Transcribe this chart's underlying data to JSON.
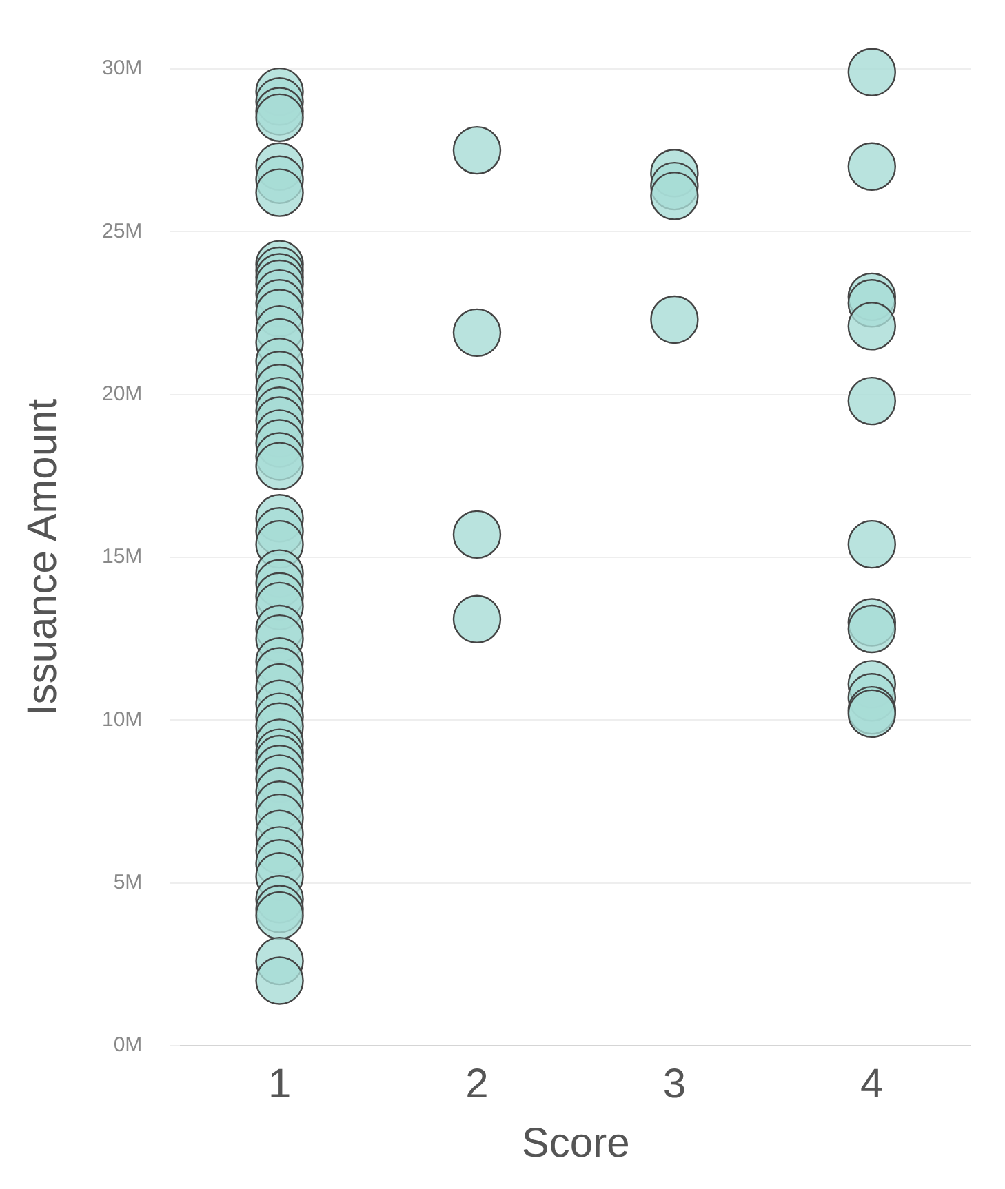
{
  "chart_data": {
    "type": "scatter",
    "xlabel": "Score",
    "ylabel": "Issuance Amount",
    "categories": [
      "1",
      "2",
      "3",
      "4"
    ],
    "ylim": [
      0,
      30
    ],
    "yticks": [
      {
        "value": 0,
        "label": "0M"
      },
      {
        "value": 5,
        "label": "5M"
      },
      {
        "value": 10,
        "label": "10M"
      },
      {
        "value": 15,
        "label": "15M"
      },
      {
        "value": 20,
        "label": "20M"
      },
      {
        "value": 25,
        "label": "25M"
      },
      {
        "value": 30,
        "label": "30M"
      }
    ],
    "grid": "y",
    "marker": "circle",
    "series": [
      {
        "color": "#a8dcd6",
        "x": [
          "1",
          "1",
          "1",
          "1",
          "1",
          "1",
          "1",
          "1",
          "1",
          "1",
          "1",
          "1",
          "1",
          "1",
          "1",
          "1",
          "1",
          "1",
          "1",
          "1",
          "1",
          "1",
          "1",
          "1",
          "1",
          "1",
          "1",
          "1",
          "1",
          "1",
          "1",
          "1",
          "1",
          "1",
          "1",
          "1",
          "1",
          "1",
          "1",
          "1",
          "1",
          "1",
          "1",
          "1",
          "1",
          "1",
          "1",
          "1",
          "1",
          "1",
          "1",
          "1",
          "1",
          "1",
          "1",
          "1",
          "1",
          "1",
          "2",
          "2",
          "2",
          "2",
          "3",
          "3",
          "3",
          "3",
          "4",
          "4",
          "4",
          "4",
          "4",
          "4",
          "4",
          "4",
          "4",
          "4",
          "4",
          "4",
          "4"
        ],
        "values": [
          29.3,
          29.0,
          28.7,
          28.5,
          27.0,
          26.6,
          26.2,
          24.0,
          23.8,
          23.6,
          23.4,
          23.1,
          22.8,
          22.5,
          22.0,
          21.6,
          21.0,
          20.6,
          20.2,
          19.8,
          19.5,
          19.2,
          18.8,
          18.5,
          18.1,
          17.8,
          16.2,
          15.8,
          15.4,
          14.5,
          14.2,
          13.8,
          13.5,
          12.8,
          12.5,
          11.8,
          11.5,
          11.0,
          10.5,
          10.1,
          9.8,
          9.3,
          9.0,
          8.8,
          8.5,
          8.2,
          7.8,
          7.4,
          7.0,
          6.5,
          6.0,
          5.6,
          5.2,
          4.5,
          4.2,
          4.0,
          2.6,
          2.0,
          27.5,
          21.9,
          15.7,
          13.1,
          26.8,
          26.4,
          26.1,
          22.3,
          29.9,
          27.0,
          23.0,
          22.8,
          22.1,
          19.8,
          15.4,
          13.0,
          12.8,
          11.1,
          10.7,
          10.3,
          10.2
        ]
      }
    ]
  }
}
